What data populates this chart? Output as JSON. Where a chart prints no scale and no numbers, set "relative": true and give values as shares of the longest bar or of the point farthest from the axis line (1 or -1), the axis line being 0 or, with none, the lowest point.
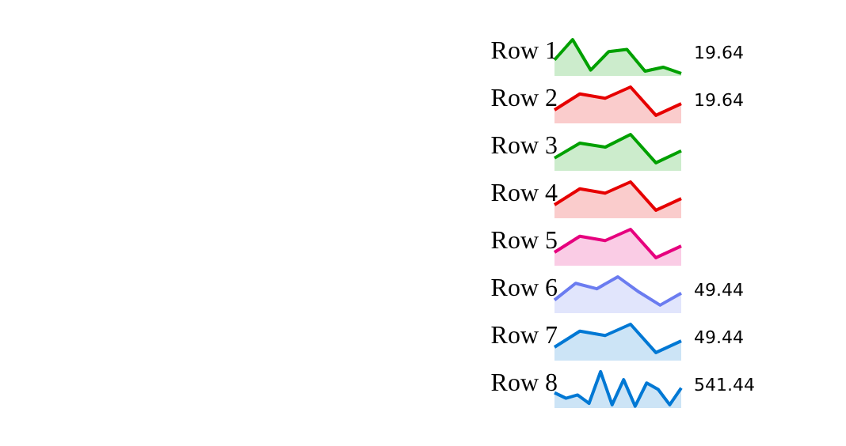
{
  "chart_data": [
    {
      "type": "area",
      "title": "Row 1",
      "categories": [
        null,
        null,
        null,
        null,
        null,
        null,
        null,
        null
      ],
      "relative": true,
      "series": [
        {
          "color": "#00a000",
          "values": [
            0.44,
            1,
            0.16,
            0.67,
            0.73,
            0.13,
            0.24,
            0.07
          ]
        }
      ],
      "annotations": [
        "19.64"
      ]
    },
    {
      "type": "area",
      "title": "Row 2",
      "categories": [
        null,
        null,
        null,
        null,
        null,
        null
      ],
      "relative": true,
      "series": [
        {
          "color": "#e60000",
          "values": [
            0.37,
            0.81,
            0.69,
            1,
            0.22,
            0.54
          ]
        }
      ],
      "annotations": [
        "19.64"
      ]
    },
    {
      "type": "area",
      "title": "Row 3",
      "categories": [
        null,
        null,
        null,
        null,
        null,
        null
      ],
      "relative": true,
      "series": [
        {
          "color": "#00a000",
          "values": [
            0.35,
            0.76,
            0.65,
            1,
            0.22,
            0.55
          ]
        }
      ]
    },
    {
      "type": "area",
      "title": "Row 4",
      "categories": [
        null,
        null,
        null,
        null,
        null,
        null
      ],
      "relative": true,
      "series": [
        {
          "color": "#e60000",
          "values": [
            0.37,
            0.81,
            0.69,
            1,
            0.22,
            0.54
          ]
        }
      ]
    },
    {
      "type": "area",
      "title": "Row 5",
      "categories": [
        null,
        null,
        null,
        null,
        null,
        null
      ],
      "relative": true,
      "series": [
        {
          "color": "#e6007e",
          "values": [
            0.37,
            0.81,
            0.69,
            1,
            0.22,
            0.54
          ]
        }
      ]
    },
    {
      "type": "area",
      "title": "Row 6",
      "categories": [
        null,
        null,
        null,
        null,
        null,
        null,
        null
      ],
      "relative": true,
      "series": [
        {
          "color": "#6b7cf0",
          "values": [
            0.36,
            0.82,
            0.67,
            1,
            0.58,
            0.22,
            0.55
          ]
        }
      ],
      "annotations": [
        "49.44"
      ]
    },
    {
      "type": "area",
      "title": "Row 7",
      "categories": [
        null,
        null,
        null,
        null,
        null,
        null
      ],
      "relative": true,
      "series": [
        {
          "color": "#0078d4",
          "values": [
            0.37,
            0.81,
            0.69,
            1,
            0.22,
            0.54
          ]
        }
      ],
      "annotations": [
        "49.44"
      ]
    },
    {
      "type": "area",
      "title": "Row 8",
      "categories": [
        null,
        null,
        null,
        null,
        null,
        null,
        null,
        null,
        null,
        null,
        null,
        null
      ],
      "relative": true,
      "series": [
        {
          "color": "#0078d4",
          "values": [
            0.42,
            0.27,
            0.36,
            0.13,
            1,
            0.09,
            0.78,
            0.05,
            0.69,
            0.51,
            0.09,
            0.55
          ]
        }
      ],
      "annotations": [
        "541.44"
      ]
    }
  ]
}
